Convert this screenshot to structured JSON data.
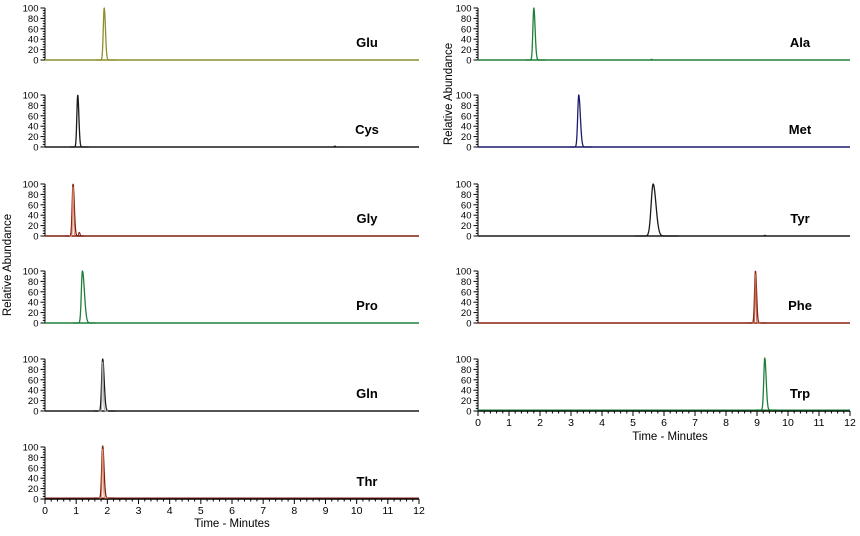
{
  "figure": {
    "background": "#ffffff",
    "axis_color": "#000000",
    "text_color": "#000000"
  },
  "chart_data": {
    "type": "line",
    "title": "",
    "xlabel": "Time - Minutes",
    "ylabel": "Relative Abundance",
    "xlim": [
      0,
      12
    ],
    "ylim": [
      0,
      100
    ],
    "x_major_ticks": [
      0,
      1,
      2,
      3,
      4,
      5,
      6,
      7,
      8,
      9,
      10,
      11,
      12
    ],
    "y_major_ticks": [
      100,
      80,
      60,
      40,
      20,
      0
    ],
    "grid": false,
    "legend": "none",
    "columns": [
      {
        "side": "left",
        "has_x_axis": true,
        "panels": [
          {
            "label": "Glu",
            "color": "#8e8e2d",
            "peak": {
              "time": 1.9,
              "height": 100,
              "sigma": 0.03,
              "skew": 1.3
            },
            "blips": []
          },
          {
            "label": "Cys",
            "color": "#1a1a1a",
            "peak": {
              "time": 1.05,
              "height": 100,
              "sigma": 0.028,
              "skew": 1.3
            },
            "blips": [
              {
                "time": 9.3,
                "height": 2
              }
            ]
          },
          {
            "label": "Gly",
            "color": "#7d1e11",
            "secondary_color": "#e09070",
            "peak": {
              "time": 0.9,
              "height": 100,
              "sigma": 0.028,
              "skew": 1.4
            },
            "blips": [
              {
                "time": 1.1,
                "height": 7
              }
            ]
          },
          {
            "label": "Pro",
            "color": "#1e8038",
            "peak": {
              "time": 1.2,
              "height": 100,
              "sigma": 0.034,
              "skew": 1.9
            },
            "blips": []
          },
          {
            "label": "Gln",
            "color": "#1a1a1a",
            "secondary_color": "#a8a8a8",
            "peak": {
              "time": 1.85,
              "height": 100,
              "sigma": 0.032,
              "skew": 1.5
            },
            "blips": []
          },
          {
            "label": "Thr",
            "color": "#7d1e11",
            "secondary_color": "#e09070",
            "peak": {
              "time": 1.85,
              "height": 100,
              "sigma": 0.03,
              "skew": 1.4
            },
            "blips": []
          }
        ]
      },
      {
        "side": "right",
        "has_x_axis": true,
        "panels": [
          {
            "label": "Ala",
            "color": "#1e8038",
            "peak": {
              "time": 1.8,
              "height": 100,
              "sigma": 0.03,
              "skew": 1.4
            },
            "blips": [
              {
                "time": 5.6,
                "height": 1.5
              }
            ]
          },
          {
            "label": "Met",
            "color": "#1d1d6e",
            "peak": {
              "time": 3.25,
              "height": 100,
              "sigma": 0.034,
              "skew": 1.5
            },
            "blips": []
          },
          {
            "label": "Tyr",
            "color": "#1a1a1a",
            "peak": {
              "time": 5.65,
              "height": 100,
              "sigma": 0.065,
              "skew": 1.4
            },
            "blips": [
              {
                "time": 9.25,
                "height": 1.5
              }
            ]
          },
          {
            "label": "Phe",
            "color": "#8a2012",
            "secondary_color": "#c06a50",
            "peak": {
              "time": 8.95,
              "height": 100,
              "sigma": 0.028,
              "skew": 1.3
            },
            "blips": []
          },
          {
            "label": "Trp",
            "color": "#1e8038",
            "peak": {
              "time": 9.25,
              "height": 100,
              "sigma": 0.032,
              "skew": 1.4
            },
            "blips": []
          }
        ]
      }
    ]
  }
}
